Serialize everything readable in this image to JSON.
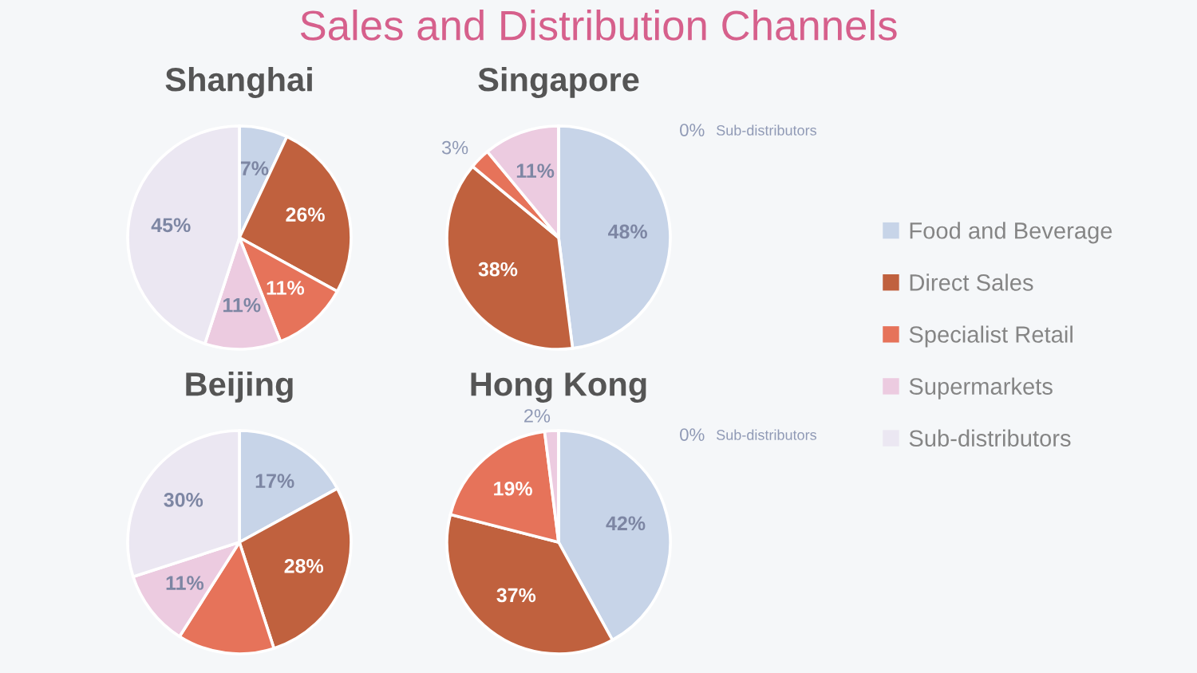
{
  "chart_data": [
    {
      "type": "pie",
      "title": "Shanghai",
      "annotations": [
        "Sales and Distribution Channels"
      ],
      "categories": [
        null,
        null,
        null,
        null,
        null
      ],
      "values": [
        7,
        26,
        11,
        11,
        45
      ],
      "colors": [
        "#c7d4e8",
        "#c0613e",
        "#e6735a",
        "#eccbe0",
        "#ebe7f2"
      ],
      "value_labels": [
        "7%",
        "26%",
        "11%",
        "11%",
        "45%"
      ]
    },
    {
      "type": "pie",
      "title": "Singapore",
      "legend": "right",
      "categories": [
        "Food and Beverage",
        "Direct Sales",
        "Specialist Retail",
        "Supermarkets",
        "Sub-distributors"
      ],
      "values": [
        48,
        38,
        3,
        11,
        0
      ],
      "colors": [
        "#c7d4e8",
        "#c0613e",
        "#e6735a",
        "#eccbe0",
        "#ebe7f2"
      ],
      "value_labels": [
        "48%",
        "38%",
        "3%",
        "11%",
        "0%"
      ]
    },
    {
      "type": "pie",
      "title": "Beijing",
      "categories": [
        null,
        null,
        null,
        null,
        null
      ],
      "values": [
        17,
        28,
        14,
        11,
        30
      ],
      "colors": [
        "#c7d4e8",
        "#c0613e",
        "#e6735a",
        "#eccbe0",
        "#ebe7f2"
      ],
      "value_labels": [
        "17%",
        "28%",
        null,
        "11%",
        "30%"
      ]
    },
    {
      "type": "pie",
      "title": "Hong Kong",
      "categories": [
        null,
        null,
        null,
        null,
        "Sub-distributors"
      ],
      "values": [
        42,
        37,
        19,
        2,
        0
      ],
      "colors": [
        "#c7d4e8",
        "#c0613e",
        "#e6735a",
        "#eccbe0",
        "#ebe7f2"
      ],
      "value_labels": [
        "42%",
        "37%",
        "19%",
        "2%",
        "0%"
      ]
    }
  ]
}
